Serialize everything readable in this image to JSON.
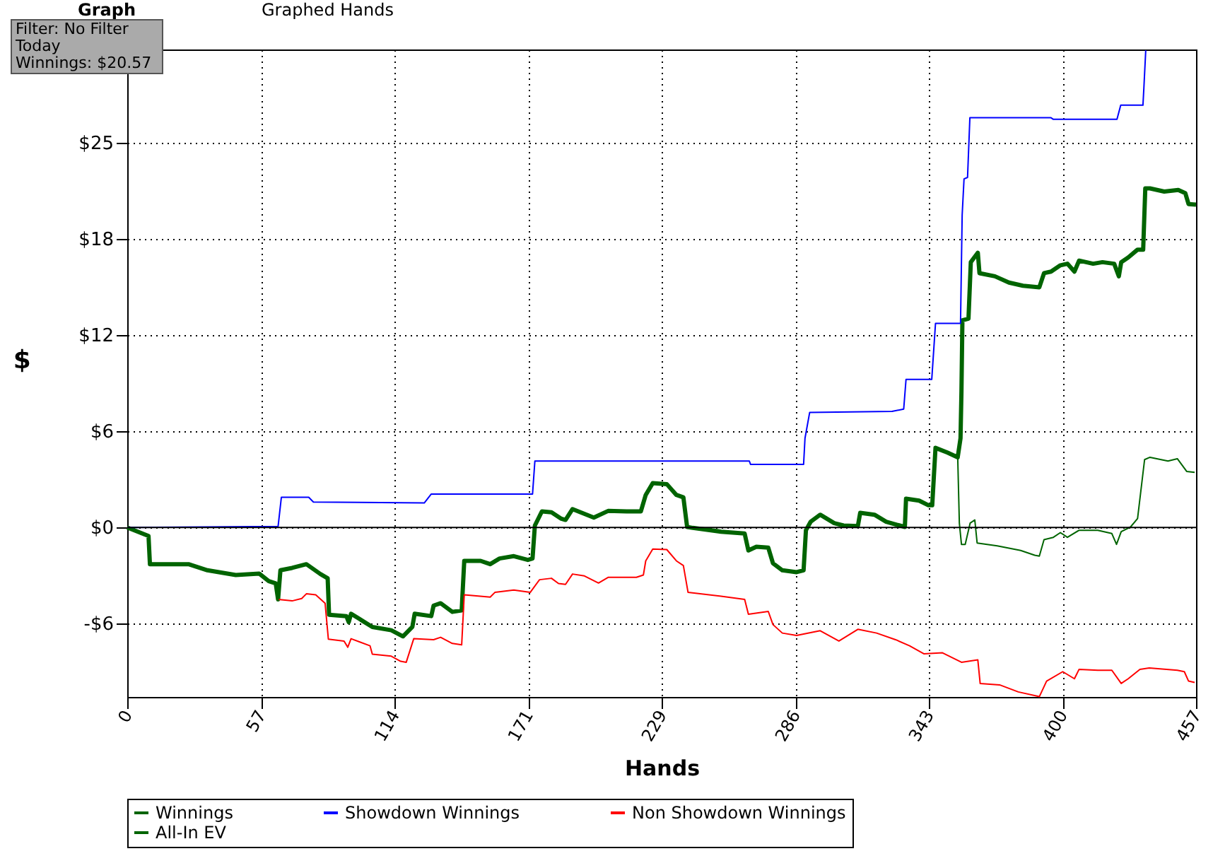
{
  "chart_data": {
    "type": "line",
    "xlabel": "Hands",
    "ylabel": "$",
    "annotations": [
      "Graph",
      "Graphed Hands",
      "Filter: No Filter",
      "Today",
      "Winnings: $20.57"
    ],
    "xlim": [
      0,
      457
    ],
    "ylim": [
      -10.8,
      30.45
    ],
    "xticks": [
      0,
      {
        "value": 57.125,
        "label": "57"
      },
      {
        "value": 114.25,
        "label": "114"
      },
      {
        "value": 171.375,
        "label": "171"
      },
      {
        "value": 228.5,
        "label": "229"
      },
      {
        "value": 285.625,
        "label": "286"
      },
      {
        "value": 342.75,
        "label": "343"
      },
      {
        "value": 399.875,
        "label": "400"
      },
      457
    ],
    "yticks": [
      {
        "value": -6.125,
        "label": "-$6"
      },
      {
        "value": 0,
        "label": "$0"
      },
      {
        "value": 6.125,
        "label": "$6"
      },
      {
        "value": 12.25,
        "label": "$12"
      },
      {
        "value": 18.375,
        "label": "$18"
      },
      {
        "value": 24.5,
        "label": "$25"
      }
    ],
    "grid": true,
    "legend": "bottom",
    "marker": "none",
    "line_style": "solid",
    "ref_lines": [
      {
        "axis": "y",
        "value": 0,
        "color": "#000000"
      }
    ],
    "series": [
      {
        "name": "Winnings",
        "color": "#006400",
        "x": [
          0,
          9.1,
          9.7,
          26.2,
          34.3,
          46.4,
          56.4,
          60.5,
          63.5,
          64.5,
          65.5,
          70.5,
          76.6,
          82.6,
          85.7,
          86.3,
          93.7,
          94.7,
          95.7,
          104.8,
          112.9,
          117.9,
          121.9,
          122.9,
          130,
          131,
          134,
          139,
          143,
          144.1,
          151.1,
          155.2,
          159.2,
          165.3,
          171.3,
          173.3,
          174.3,
          177.3,
          181.4,
          185.4,
          187.4,
          190.4,
          199.5,
          205.6,
          213.6,
          219.6,
          221.7,
          224.7,
          230.7,
          234.8,
          237.8,
          239.4,
          241.8,
          253.9,
          264,
          265.6,
          269,
          274.1,
          276.1,
          280.1,
          286.2,
          289.2,
          290.2,
          292.2,
          296.3,
          302.3,
          306.3,
          312.4,
          313.4,
          319.5,
          324.5,
          332.5,
          333,
          338.6,
          342.6,
          344.2,
          345.6,
          350.7,
          355.1,
          356.3,
          356.7,
          357.1,
          359.7,
          360.7,
          363.7,
          364.4,
          371,
          377,
          383,
          390,
          392,
          395,
          399,
          402,
          405,
          407,
          413,
          417,
          422,
          424,
          425,
          428,
          432,
          434.4,
          435.3,
          437.3,
          443.4,
          449.4,
          452.4,
          453.8,
          457
        ],
        "values": [
          0,
          -0.54,
          -2.34,
          -2.34,
          -2.73,
          -3.03,
          -2.94,
          -3.42,
          -3.57,
          -4.59,
          -2.73,
          -2.58,
          -2.34,
          -2.97,
          -3.24,
          -5.56,
          -5.65,
          -6.04,
          -5.5,
          -6.34,
          -6.55,
          -6.94,
          -6.34,
          -5.5,
          -5.65,
          -4.98,
          -4.83,
          -5.38,
          -5.29,
          -2.13,
          -2.13,
          -2.34,
          -1.98,
          -1.83,
          -2.07,
          -1.98,
          0.12,
          1.02,
          0.96,
          0.57,
          0.48,
          1.17,
          0.63,
          1.05,
          1.02,
          1.02,
          2.07,
          2.82,
          2.76,
          2.07,
          1.92,
          0.03,
          -0.03,
          -0.27,
          -0.39,
          -1.47,
          -1.23,
          -1.29,
          -2.28,
          -2.73,
          -2.85,
          -2.73,
          -0.18,
          0.36,
          0.81,
          0.27,
          0.12,
          0.09,
          0.93,
          0.81,
          0.36,
          0.03,
          1.83,
          1.71,
          1.41,
          1.41,
          5.07,
          4.77,
          4.47,
          5.68,
          8.68,
          13.2,
          13.3,
          16.9,
          17.5,
          16.2,
          16,
          15.6,
          15.4,
          15.3,
          16.2,
          16.3,
          16.7,
          16.8,
          16.3,
          17,
          16.8,
          16.9,
          16.8,
          16,
          16.9,
          17.2,
          17.7,
          17.7,
          21.6,
          21.6,
          21.4,
          21.5,
          21.3,
          20.6,
          20.57
        ]
      },
      {
        "name": "Showdown Winnings",
        "color": "#0000ff",
        "x": [
          0,
          64.5,
          65.9,
          77.6,
          79.6,
          127,
          130,
          173.3,
          174.3,
          266,
          266.5,
          289.2,
          289.8,
          291.8,
          327,
          332,
          333,
          344,
          345.6,
          356.3,
          357,
          357.8,
          359.3,
          360.3,
          395,
          396,
          423.2,
          424.8,
          434.3,
          434.7,
          435.5
        ],
        "values": [
          0,
          0.06,
          1.92,
          1.92,
          1.62,
          1.56,
          2.13,
          2.13,
          4.23,
          4.23,
          4.02,
          4.02,
          5.68,
          7.33,
          7.39,
          7.54,
          9.43,
          9.43,
          13,
          13,
          19.9,
          22.2,
          22.3,
          26.1,
          26.1,
          26,
          26,
          26.9,
          26.9,
          28,
          30.4
        ]
      },
      {
        "name": "Non Showdown Winnings",
        "color": "#ff0000",
        "x": [
          64.5,
          70.5,
          74.6,
          76.6,
          80.6,
          84.6,
          86,
          92.7,
          94.3,
          95.7,
          103.8,
          104.8,
          112.9,
          116.9,
          119.3,
          122.5,
          131,
          134,
          139,
          143,
          144.1,
          155.2,
          157.2,
          165.3,
          172.3,
          176.3,
          181.4,
          184.4,
          187.4,
          190.4,
          195.5,
          201.5,
          205.6,
          217.7,
          220.7,
          221.7,
          224.7,
          230.7,
          234.8,
          237.8,
          239.8,
          253.9,
          264,
          265.6,
          274.1,
          276.1,
          280.1,
          286.2,
          296.3,
          304.3,
          312.4,
          320.4,
          328.5,
          334.5,
          340.6,
          348.6,
          356.7,
          363.7,
          364.7,
          373,
          381,
          390,
          393.1,
          400,
          405,
          407,
          415,
          421,
          425,
          428,
          433,
          437,
          449,
          452,
          453.8,
          456.4
        ],
        "values": [
          -4.59,
          -4.68,
          -4.53,
          -4.23,
          -4.29,
          -4.83,
          -7.12,
          -7.24,
          -7.63,
          -7.09,
          -7.54,
          -8.08,
          -8.2,
          -8.53,
          -8.59,
          -7.09,
          -7.15,
          -7,
          -7.39,
          -7.48,
          -4.29,
          -4.44,
          -4.14,
          -3.99,
          -4.14,
          -3.33,
          -3.24,
          -3.57,
          -3.63,
          -2.97,
          -3.09,
          -3.54,
          -3.18,
          -3.18,
          -3.03,
          -2.13,
          -1.38,
          -1.41,
          -2.13,
          -2.43,
          -4.14,
          -4.38,
          -4.59,
          -5.53,
          -5.35,
          -6.19,
          -6.73,
          -6.88,
          -6.58,
          -7.24,
          -6.49,
          -6.73,
          -7.15,
          -7.54,
          -8.05,
          -7.99,
          -8.59,
          -8.44,
          -9.94,
          -10.03,
          -10.48,
          -10.78,
          -9.79,
          -9.19,
          -9.64,
          -9.04,
          -9.1,
          -9.1,
          -9.94,
          -9.64,
          -9.04,
          -8.95,
          -9.1,
          -9.19,
          -9.79,
          -9.88
        ]
      },
      {
        "name": "All-In EV",
        "color": "#006400",
        "x": [
          0,
          9.1,
          9.7,
          26.2,
          34.3,
          46.4,
          56.4,
          60.5,
          63.5,
          64.5,
          65.5,
          70.5,
          76.6,
          82.6,
          85.7,
          86.3,
          93.7,
          94.7,
          95.7,
          104.8,
          112.9,
          117.9,
          121.9,
          122.9,
          130,
          131,
          134,
          139,
          143,
          144.1,
          151.1,
          155.2,
          159.2,
          165.3,
          171.3,
          173.3,
          174.3,
          177.3,
          181.4,
          185.4,
          187.4,
          190.4,
          199.5,
          205.6,
          213.6,
          219.6,
          221.7,
          224.7,
          230.7,
          234.8,
          237.8,
          239.4,
          241.8,
          253.9,
          264,
          265.6,
          269,
          274.1,
          276.1,
          280.1,
          286.2,
          289.2,
          290.2,
          292.2,
          296.3,
          302.3,
          306.3,
          312.4,
          313.4,
          319.5,
          324.5,
          332.5,
          333,
          338.6,
          342.6,
          344.2,
          345.6,
          350.7,
          355.1,
          355.8,
          356.7,
          358.3,
          360.4,
          362.4,
          363.4,
          372,
          382,
          388,
          390,
          392,
          396,
          399,
          402,
          407,
          415,
          421,
          423,
          425,
          429,
          432,
          435,
          437.3,
          445,
          449,
          453,
          456.4
        ],
        "values": [
          0,
          -0.54,
          -2.34,
          -2.34,
          -2.73,
          -3.03,
          -2.94,
          -3.42,
          -3.57,
          -4.59,
          -2.73,
          -2.58,
          -2.34,
          -2.97,
          -3.24,
          -5.56,
          -5.65,
          -6.04,
          -5.5,
          -6.34,
          -6.55,
          -6.94,
          -6.34,
          -5.5,
          -5.65,
          -4.98,
          -4.83,
          -5.38,
          -5.29,
          -2.13,
          -2.13,
          -2.34,
          -1.98,
          -1.83,
          -2.07,
          -1.98,
          0.12,
          1.02,
          0.96,
          0.57,
          0.48,
          1.17,
          0.63,
          1.05,
          1.02,
          1.02,
          2.07,
          2.82,
          2.76,
          2.07,
          1.92,
          0.03,
          -0.03,
          -0.27,
          -0.39,
          -1.47,
          -1.23,
          -1.29,
          -2.28,
          -2.73,
          -2.85,
          -2.73,
          -0.18,
          0.36,
          0.81,
          0.27,
          0.12,
          0.09,
          0.93,
          0.81,
          0.36,
          0.03,
          1.83,
          1.71,
          1.41,
          1.41,
          5.07,
          4.77,
          4.47,
          0.27,
          -1.08,
          -1.08,
          0.27,
          0.48,
          -0.99,
          -1.17,
          -1.47,
          -1.77,
          -1.83,
          -0.78,
          -0.63,
          -0.33,
          -0.63,
          -0.18,
          -0.18,
          -0.39,
          -1.08,
          -0.27,
          0.03,
          0.57,
          4.32,
          4.47,
          4.23,
          4.38,
          3.57,
          3.51
        ]
      }
    ]
  }
}
